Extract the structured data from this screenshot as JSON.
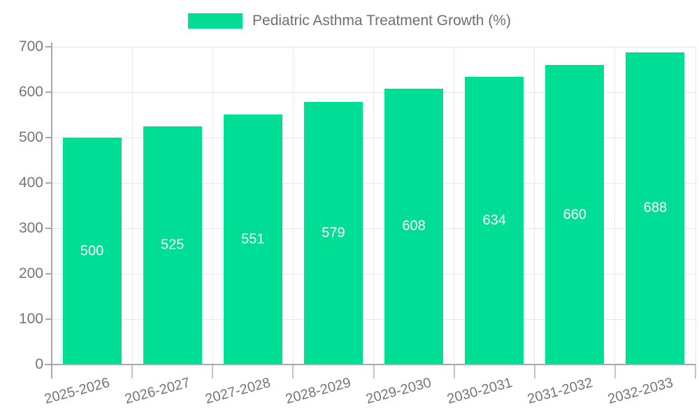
{
  "chart_data": {
    "type": "bar",
    "title": "Pediatric Asthma Treatment Growth (%)",
    "categories": [
      "2025-2026",
      "2026-2027",
      "2027-2028",
      "2028-2029",
      "2029-2030",
      "2030-2031",
      "2031-2032",
      "2032-2033"
    ],
    "values": [
      500,
      525,
      551,
      579,
      608,
      634,
      660,
      688
    ],
    "xlabel": "",
    "ylabel": "",
    "ylim": [
      0,
      700
    ],
    "yticks": [
      0,
      100,
      200,
      300,
      400,
      500,
      600,
      700
    ],
    "grid": true,
    "legend_position": "top-center",
    "value_labels": "centered-inside-bars",
    "colors": {
      "bar": "#00de95",
      "value_label": "#ffffff",
      "axis_text": "#757575",
      "legend_text": "#6f6f6f",
      "gridline": "#e7e7e7",
      "axis_line": "#a8a8a8",
      "tick_mark": "#c4c4c4"
    }
  }
}
